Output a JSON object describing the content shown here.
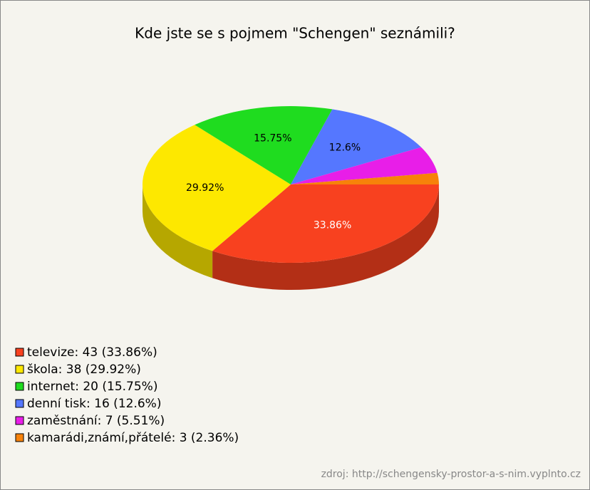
{
  "chart_data": {
    "type": "pie",
    "title": "Kde jste se s pojmem \"Schengen\" seznámili?",
    "categories": [
      "televize",
      "škola",
      "internet",
      "denní tisk",
      "zaměstnání",
      "kamarádi,známí,přátelé"
    ],
    "values": [
      33.86,
      29.92,
      15.75,
      12.6,
      5.51,
      2.36
    ],
    "value_labels": [
      "33.86%",
      "29.92%",
      "15.75%",
      "12.6%",
      null,
      null
    ],
    "colors": [
      "#f8411f",
      "#fde800",
      "#1fdc1f",
      "#5577ff",
      "#e81ee8",
      "#f7820a"
    ],
    "legend": [
      "televize: 43 (33.86%)",
      "škola: 38 (29.92%)",
      "internet: 20 (15.75%)",
      "denní tisk: 16 (12.6%)",
      "zaměstnání: 7 (5.51%)",
      "kamarádi,známí,přátelé: 3 (2.36%)"
    ],
    "source": "zdroj: http://schengensky-prostor-a-s-nim.vyplnto.cz"
  }
}
